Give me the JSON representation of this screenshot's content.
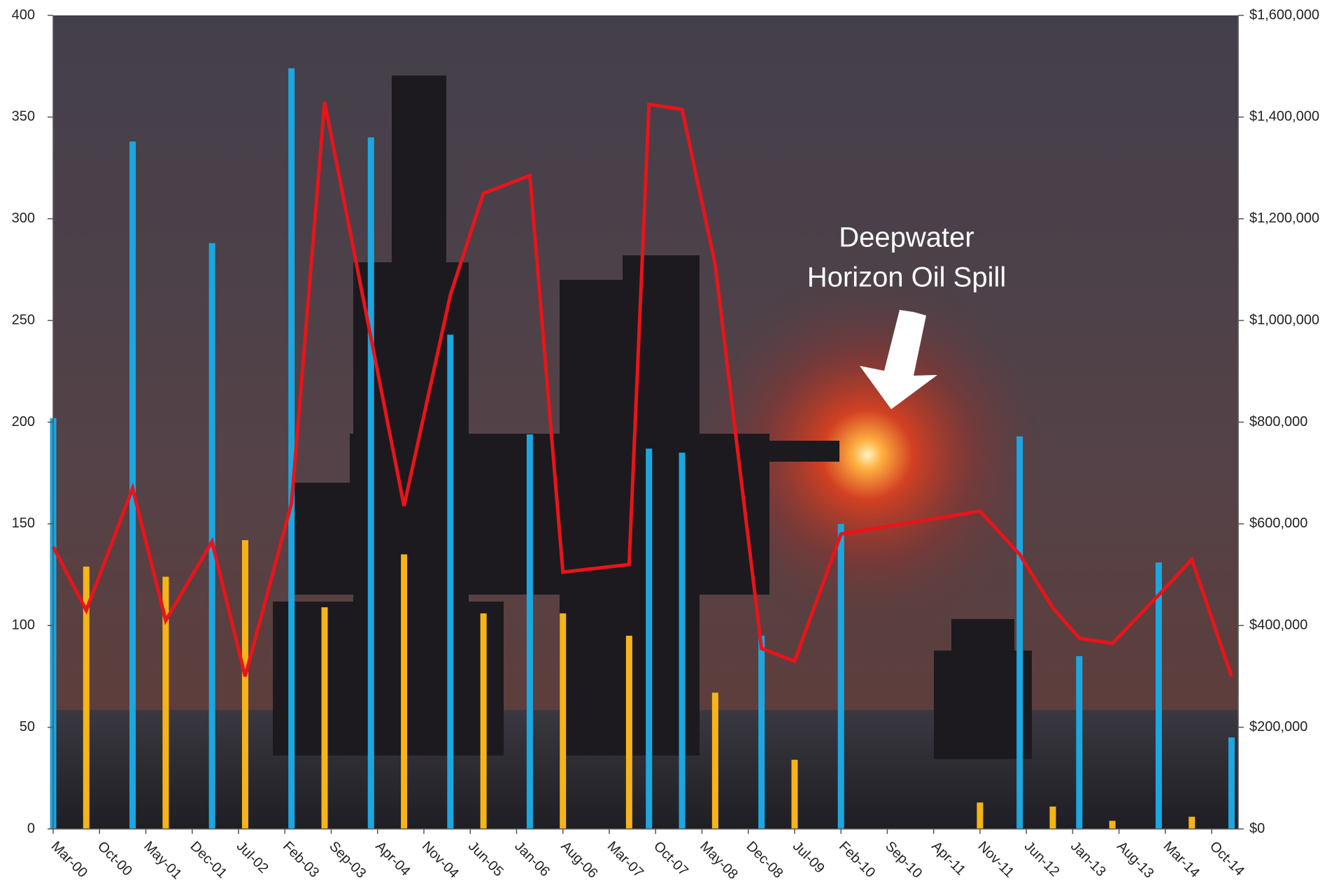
{
  "chart_data": {
    "type": "bar",
    "xlim": [
      "Mar-00",
      "Feb-15"
    ],
    "xticks": [
      "Mar-00",
      "Oct-00",
      "May-01",
      "Dec-01",
      "Jul-02",
      "Feb-03",
      "Sep-03",
      "Apr-04",
      "Nov-04",
      "Jun-05",
      "Jan-06",
      "Aug-06",
      "Mar-07",
      "Oct-07",
      "May-08",
      "Dec-08",
      "Jul-09",
      "Feb-10",
      "Sep-10",
      "Apr-11",
      "Nov-11",
      "Jun-12",
      "Jan-13",
      "Aug-13",
      "Mar-14",
      "Oct-14"
    ],
    "ylim": [
      0,
      400
    ],
    "yticks": [
      0,
      50,
      100,
      150,
      200,
      250,
      300,
      350,
      400
    ],
    "y2lim": [
      0,
      1600000
    ],
    "y2ticks": [
      {
        "value": 0,
        "label": "$0"
      },
      {
        "value": 200000,
        "label": "$200,000"
      },
      {
        "value": 400000,
        "label": "$400,000"
      },
      {
        "value": 600000,
        "label": "$600,000"
      },
      {
        "value": 800000,
        "label": "$800,000"
      },
      {
        "value": 1000000,
        "label": "$1,000,000"
      },
      {
        "value": 1200000,
        "label": "$1,200,000"
      },
      {
        "value": 1400000,
        "label": "$1,400,000"
      },
      {
        "value": 1600000,
        "label": "$1,600,000"
      }
    ],
    "annotation": [
      "Deepwater",
      "Horizon Oil Spill"
    ],
    "series": [
      {
        "type": "bar",
        "color": "#1ca7e0",
        "x": [
          "Mar-00",
          "Mar-01",
          "Mar-02",
          "Mar-03",
          "Mar-04",
          "Mar-05",
          "Mar-06",
          "Sep-07",
          "Feb-08",
          "Feb-09",
          "Feb-10",
          "May-12",
          "Feb-13",
          "Feb-14",
          "Jan-15"
        ],
        "values": [
          202,
          338,
          288,
          374,
          340,
          243,
          194,
          187,
          185,
          95,
          150,
          193,
          85,
          131,
          45
        ]
      },
      {
        "type": "bar",
        "color": "#f6b417",
        "x": [
          "Aug-00",
          "Aug-01",
          "Aug-02",
          "Aug-03",
          "Aug-04",
          "Aug-05",
          "Aug-06",
          "Jun-07",
          "Jul-08",
          "Jul-09",
          "Nov-11",
          "Oct-12",
          "Jul-13",
          "Jul-14"
        ],
        "values": [
          129,
          124,
          142,
          109,
          135,
          106,
          106,
          95,
          67,
          34,
          13,
          11,
          4,
          6
        ]
      },
      {
        "type": "line",
        "axis": "y2",
        "color": "#e8141a",
        "x": [
          "Mar-00",
          "Aug-00",
          "Mar-01",
          "Aug-01",
          "Mar-02",
          "Aug-02",
          "Mar-03",
          "Aug-03",
          "Aug-04",
          "Mar-05",
          "Aug-05",
          "Mar-06",
          "Aug-06",
          "Jun-07",
          "Sep-07",
          "Feb-08",
          "Jul-08",
          "Feb-09",
          "Jul-09",
          "Feb-10",
          "Nov-11",
          "May-12",
          "Oct-12",
          "Feb-13",
          "Jul-13",
          "Feb-14",
          "Jul-14",
          "Jan-15"
        ],
        "values": [
          555000,
          430000,
          670000,
          410000,
          565000,
          300000,
          640000,
          1430000,
          635000,
          1050000,
          1250000,
          1285000,
          505000,
          520000,
          1425000,
          1415000,
          1110000,
          355000,
          330000,
          580000,
          625000,
          540000,
          435000,
          375000,
          365000,
          460000,
          530000,
          300000
        ]
      }
    ]
  }
}
